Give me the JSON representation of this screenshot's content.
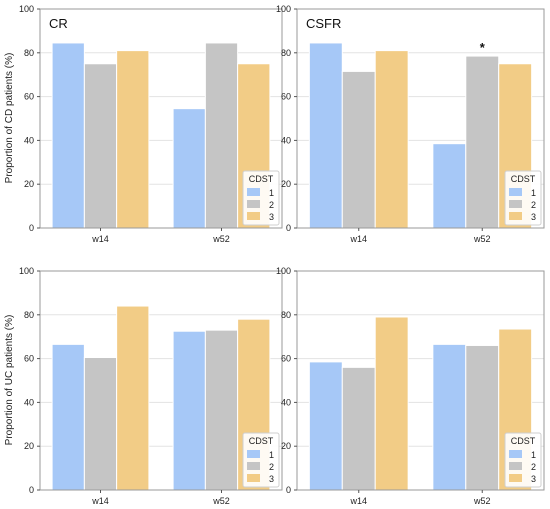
{
  "colors": {
    "1": "#a6c8f7",
    "2": "#c5c5c5",
    "3": "#f2cc86",
    "grid": "#e3e3e3",
    "frame": "#9a9a9a"
  },
  "chart_data": [
    {
      "type": "bar",
      "title": "CR",
      "ylabel": "Proportion of CD patients (%)",
      "ylim": [
        0,
        100
      ],
      "yticks": [
        0,
        20,
        40,
        60,
        80,
        100
      ],
      "categories": [
        "w14",
        "w52"
      ],
      "legend_title": "CDST",
      "legend_position": "bottom-right",
      "grid": true,
      "series": [
        {
          "name": "1",
          "values": [
            84.5,
            54.5
          ]
        },
        {
          "name": "2",
          "values": [
            75,
            84.5
          ]
        },
        {
          "name": "3",
          "values": [
            81,
            75
          ]
        }
      ],
      "annotations": []
    },
    {
      "type": "bar",
      "title": "CSFR",
      "ylabel": "",
      "ylim": [
        0,
        100
      ],
      "yticks": [
        0,
        20,
        40,
        60,
        80,
        100
      ],
      "categories": [
        "w14",
        "w52"
      ],
      "legend_title": "CDST",
      "legend_position": "bottom-right",
      "grid": true,
      "series": [
        {
          "name": "1",
          "values": [
            84.5,
            38.5
          ]
        },
        {
          "name": "2",
          "values": [
            71.5,
            78.5
          ]
        },
        {
          "name": "3",
          "values": [
            81,
            75
          ]
        }
      ],
      "annotations": [
        {
          "text": "*",
          "category": "w52",
          "series": "2"
        }
      ]
    },
    {
      "type": "bar",
      "title": "",
      "ylabel": "Proportion of UC patients (%)",
      "ylim": [
        0,
        100
      ],
      "yticks": [
        0,
        20,
        40,
        60,
        80,
        100
      ],
      "categories": [
        "w14",
        "w52"
      ],
      "legend_title": "CDST",
      "legend_position": "bottom-right",
      "grid": true,
      "series": [
        {
          "name": "1",
          "values": [
            66.5,
            72.5
          ]
        },
        {
          "name": "2",
          "values": [
            60.5,
            73
          ]
        },
        {
          "name": "3",
          "values": [
            84,
            78
          ]
        }
      ],
      "annotations": []
    },
    {
      "type": "bar",
      "title": "",
      "ylabel": "",
      "ylim": [
        0,
        100
      ],
      "yticks": [
        0,
        20,
        40,
        60,
        80,
        100
      ],
      "categories": [
        "w14",
        "w52"
      ],
      "legend_title": "CDST",
      "legend_position": "bottom-right",
      "grid": true,
      "series": [
        {
          "name": "1",
          "values": [
            58.5,
            66.5
          ]
        },
        {
          "name": "2",
          "values": [
            56,
            66
          ]
        },
        {
          "name": "3",
          "values": [
            79,
            73.5
          ]
        }
      ],
      "annotations": []
    }
  ]
}
